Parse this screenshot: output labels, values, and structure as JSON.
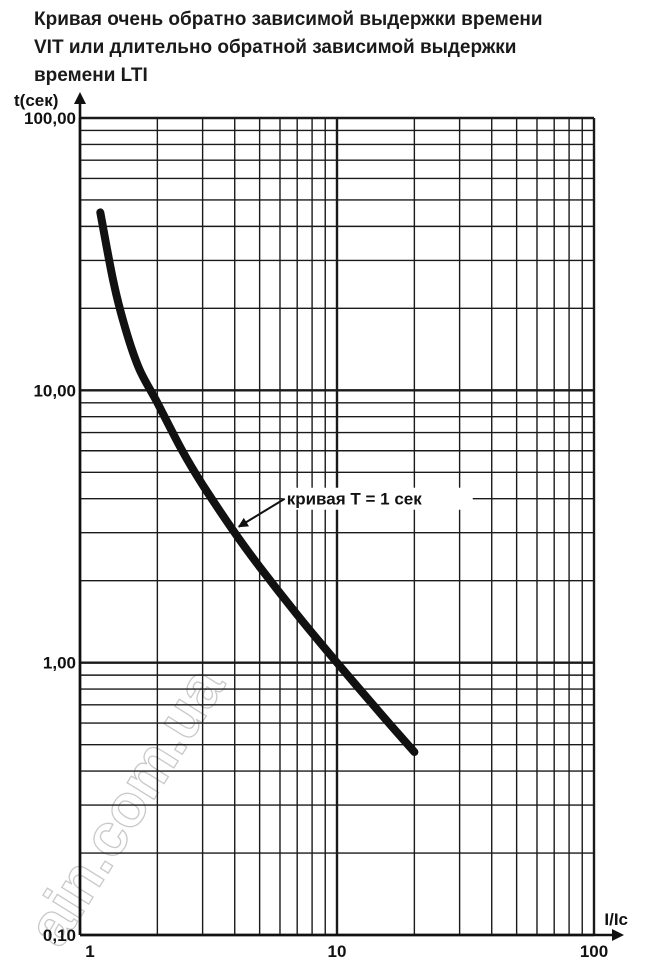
{
  "chart_data": {
    "type": "line",
    "title_lines": [
      "Кривая очень обратно зависимой выдержки времени",
      "VIT или длительно обратной зависимой выдержки",
      "времени LTI"
    ],
    "xlabel": "I/Ic",
    "ylabel": "t(сек)",
    "x_scale": "log",
    "y_scale": "log",
    "xlim": [
      1,
      100
    ],
    "ylim": [
      0.1,
      100
    ],
    "x_tick_labels": [
      "1",
      "10",
      "100"
    ],
    "y_tick_labels": [
      "0,10",
      "1,00",
      "10,00",
      "100,00"
    ],
    "grid": true,
    "series": [
      {
        "name": "кривая T = 1 сек",
        "x": [
          1.2,
          1.35,
          1.5,
          1.7,
          2.0,
          2.5,
          3.0,
          4.0,
          5.0,
          7.0,
          10.0,
          15.0,
          20.0
        ],
        "y": [
          45.0,
          25.0,
          16.9,
          12.0,
          9.0,
          6.0,
          4.5,
          3.0,
          2.25,
          1.5,
          1.0,
          0.64,
          0.47
        ]
      }
    ],
    "annotations": [
      {
        "text": "кривая T = 1 сек",
        "x": 4.0,
        "y": 3.0
      }
    ]
  },
  "watermark": "ain.com.ua",
  "colors": {
    "curve": "#111111",
    "grid": "#1a1a1a",
    "text": "#111111"
  }
}
